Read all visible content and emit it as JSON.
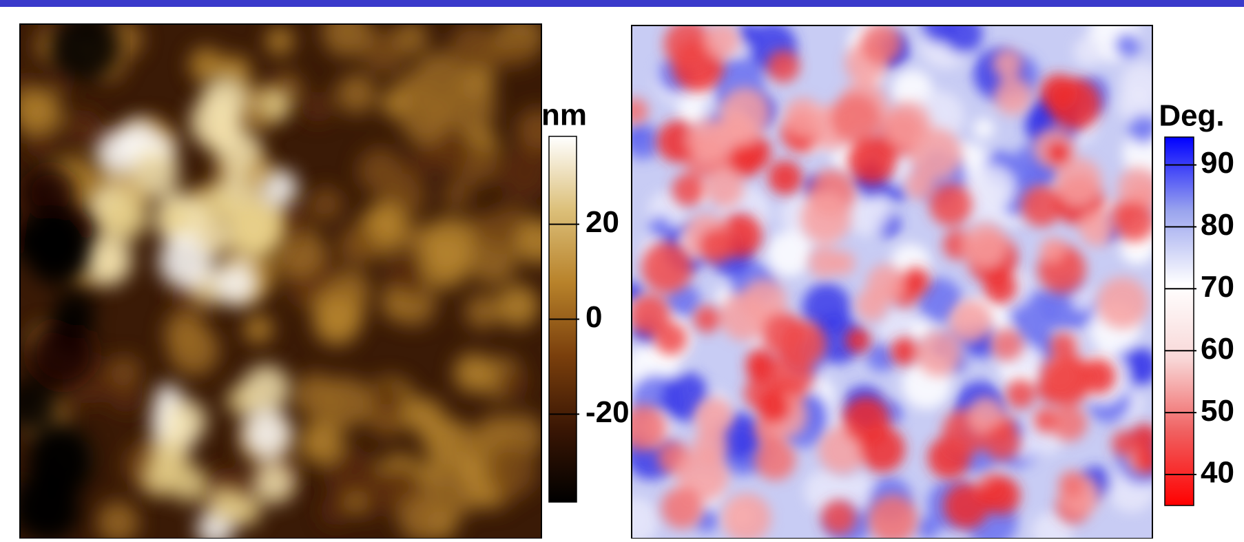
{
  "chart_data": [
    {
      "type": "heatmap",
      "colorbar_label": "nm",
      "clim": [
        -38.5,
        38.5
      ],
      "cticks": [
        20,
        0,
        -20
      ],
      "colormap": [
        "#000000",
        "#3a1604",
        "#7a3f0c",
        "#b8822a",
        "#dcc07a",
        "#ffffff"
      ]
    },
    {
      "type": "heatmap",
      "colorbar_label": "Deg.",
      "clim": [
        35,
        94.5
      ],
      "cticks": [
        90,
        80,
        70,
        60,
        50,
        40
      ],
      "colormap": [
        "#ff0000",
        "#f06060",
        "#f8d8d8",
        "#ffffff",
        "#9aa4ee",
        "#0000ff"
      ]
    }
  ]
}
